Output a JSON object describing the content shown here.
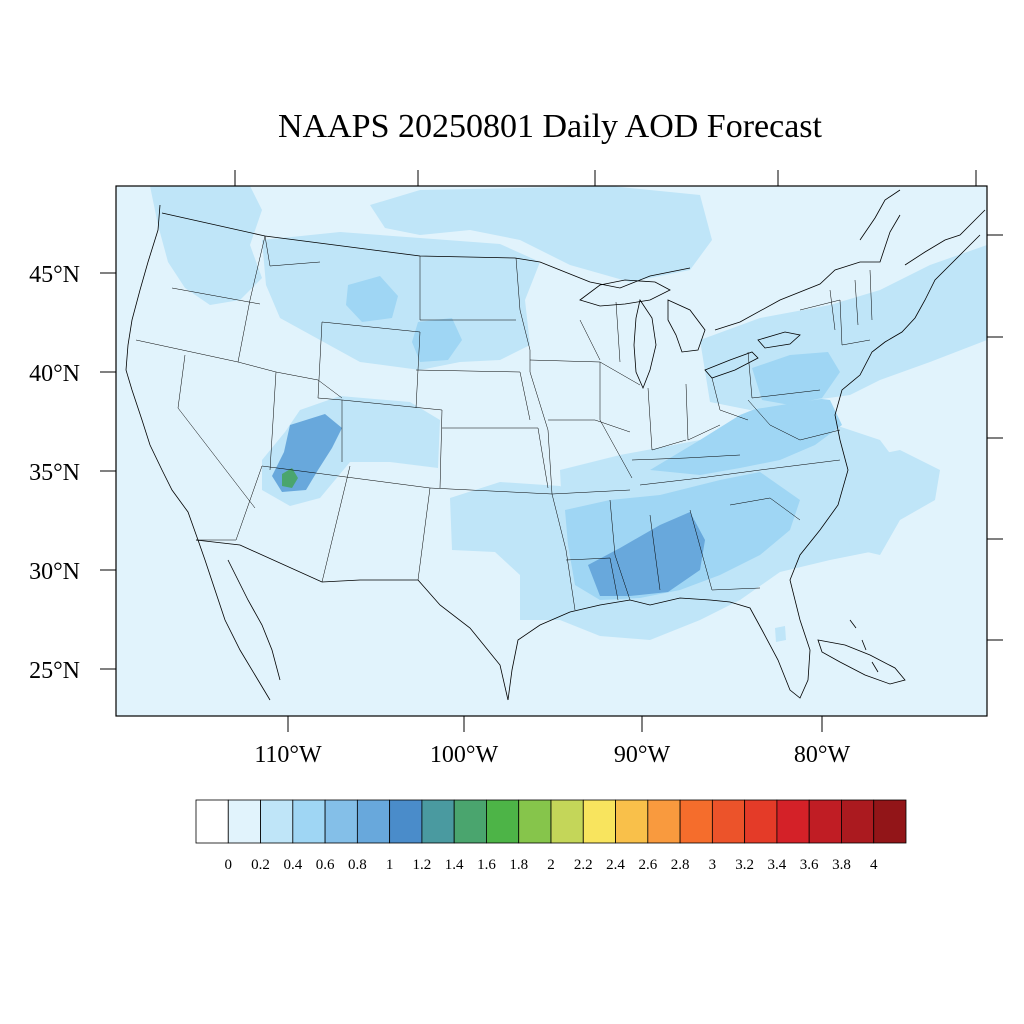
{
  "title": "NAAPS 20250801 Daily AOD Forecast",
  "map": {
    "projection": "Lambert Conformal",
    "region": "Continental United States",
    "variable": "Aerosol Optical Depth"
  },
  "axes": {
    "lat_labels": [
      "45°N",
      "40°N",
      "35°N",
      "30°N",
      "25°N"
    ],
    "lon_labels": [
      "110°W",
      "100°W",
      "90°W",
      "80°W"
    ]
  },
  "colorbar": {
    "tick_labels": [
      "0",
      "0.2",
      "0.4",
      "0.6",
      "0.8",
      "1",
      "1.2",
      "1.4",
      "1.6",
      "1.8",
      "2",
      "2.2",
      "2.4",
      "2.6",
      "2.8",
      "3",
      "3.2",
      "3.4",
      "3.6",
      "3.8",
      "4"
    ],
    "colors": [
      "#ffffff",
      "#e1f3fc",
      "#bfe5f8",
      "#9fd6f4",
      "#84bfe8",
      "#68a8dc",
      "#4a8cca",
      "#4a9aa0",
      "#4aa56e",
      "#4db447",
      "#86c54b",
      "#c4d659",
      "#f8e45e",
      "#f9c04a",
      "#f99a3e",
      "#f56d2c",
      "#ec532a",
      "#e43b28",
      "#d42128",
      "#c01d24",
      "#ab1a1f",
      "#921518"
    ]
  },
  "aod_field": {
    "background_level": 0.1,
    "plumes": [
      {
        "name": "Northwest",
        "level": 0.3
      },
      {
        "name": "Northern Plains",
        "level": 0.3
      },
      {
        "name": "Wyoming",
        "level": 0.5
      },
      {
        "name": "Four Corners",
        "level": 0.9
      },
      {
        "name": "Four Corners core",
        "level": 1.5
      },
      {
        "name": "Southeast",
        "level": 0.5
      },
      {
        "name": "Gulf Coast",
        "level": 0.7
      },
      {
        "name": "Mid-Atlantic",
        "level": 0.5
      },
      {
        "name": "Ohio Valley",
        "level": 0.4
      },
      {
        "name": "Atlantic offshore",
        "level": 0.3
      },
      {
        "name": "Canada north",
        "level": 0.3
      }
    ]
  }
}
